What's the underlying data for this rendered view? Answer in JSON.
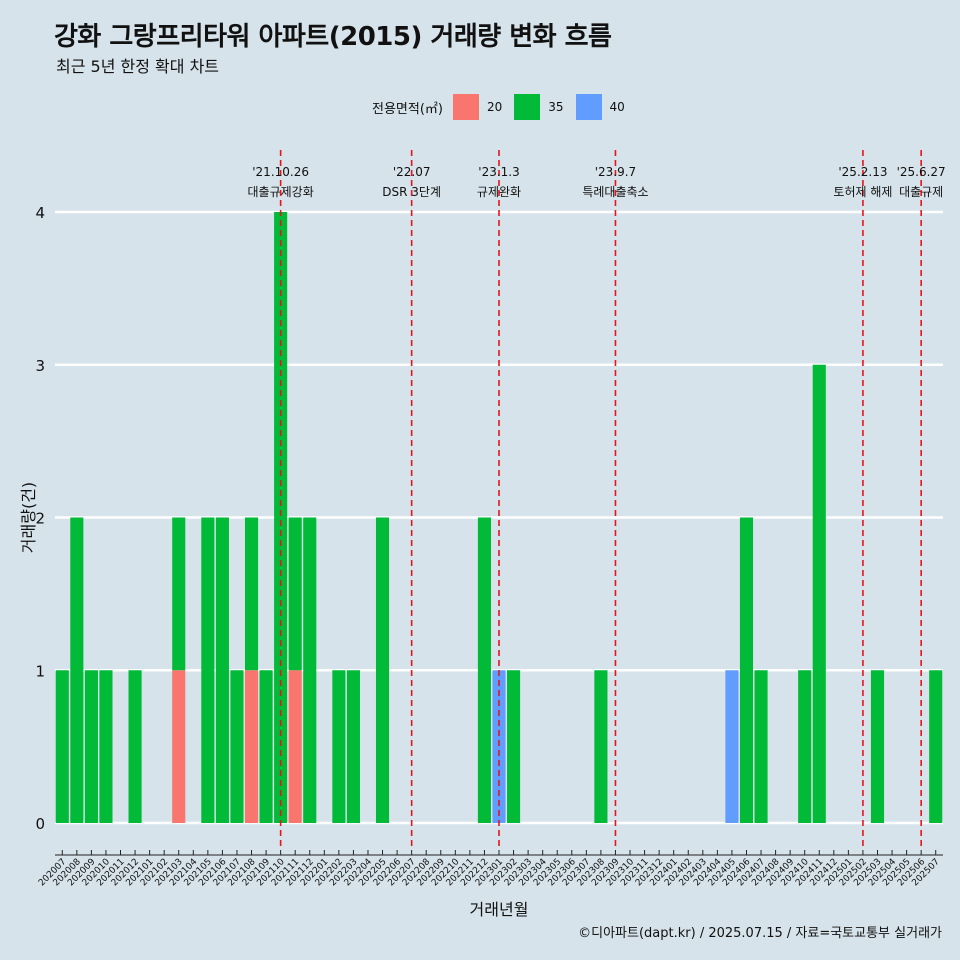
{
  "title": "강화 그랑프리타워 아파트(2015) 거래량 변화 흐름",
  "subtitle": "최근 5년 한정 확대 차트",
  "caption": "©디아파트(dapt.kr) / 2025.07.15 / 자료=국토교통부 실거래가",
  "legend": {
    "title": "전용면적(㎡)",
    "items": [
      {
        "label": "20",
        "color": "#f8766d"
      },
      {
        "label": "35",
        "color": "#00ba38"
      },
      {
        "label": "40",
        "color": "#619cff"
      }
    ]
  },
  "chart_data": {
    "type": "bar",
    "stacked": true,
    "xlabel": "거래년월",
    "ylabel": "거래량(건)",
    "ylim": [
      0,
      4
    ],
    "yticks": [
      0,
      1,
      2,
      3,
      4
    ],
    "categories": [
      "202007",
      "202008",
      "202009",
      "202010",
      "202011",
      "202012",
      "202101",
      "202102",
      "202103",
      "202104",
      "202105",
      "202106",
      "202107",
      "202108",
      "202109",
      "202110",
      "202111",
      "202112",
      "202201",
      "202202",
      "202203",
      "202204",
      "202205",
      "202206",
      "202207",
      "202208",
      "202209",
      "202210",
      "202211",
      "202212",
      "202301",
      "202302",
      "202303",
      "202304",
      "202305",
      "202306",
      "202307",
      "202308",
      "202309",
      "202310",
      "202311",
      "202312",
      "202401",
      "202402",
      "202403",
      "202404",
      "202405",
      "202406",
      "202407",
      "202408",
      "202409",
      "202410",
      "202411",
      "202412",
      "202501",
      "202502",
      "202503",
      "202504",
      "202505",
      "202506",
      "202507"
    ],
    "series": [
      {
        "name": "20",
        "color": "#f8766d",
        "values": [
          0,
          0,
          0,
          0,
          0,
          0,
          0,
          0,
          1,
          0,
          0,
          0,
          0,
          1,
          0,
          0,
          1,
          0,
          0,
          0,
          0,
          0,
          0,
          0,
          0,
          0,
          0,
          0,
          0,
          0,
          0,
          0,
          0,
          0,
          0,
          0,
          0,
          0,
          0,
          0,
          0,
          0,
          0,
          0,
          0,
          0,
          0,
          0,
          0,
          0,
          0,
          0,
          0,
          0,
          0,
          0,
          0,
          0,
          0,
          0,
          0
        ]
      },
      {
        "name": "35",
        "color": "#00ba38",
        "values": [
          1,
          2,
          1,
          1,
          0,
          1,
          0,
          0,
          1,
          0,
          2,
          2,
          1,
          1,
          1,
          4,
          1,
          2,
          0,
          1,
          1,
          0,
          2,
          0,
          0,
          0,
          0,
          0,
          0,
          2,
          0,
          1,
          0,
          0,
          0,
          0,
          0,
          1,
          0,
          0,
          0,
          0,
          0,
          0,
          0,
          0,
          0,
          2,
          1,
          0,
          0,
          1,
          3,
          0,
          0,
          0,
          1,
          0,
          0,
          0,
          1
        ]
      },
      {
        "name": "40",
        "color": "#619cff",
        "values": [
          0,
          0,
          0,
          0,
          0,
          0,
          0,
          0,
          0,
          0,
          0,
          0,
          0,
          0,
          0,
          0,
          0,
          0,
          0,
          0,
          0,
          0,
          0,
          0,
          0,
          0,
          0,
          0,
          0,
          0,
          1,
          0,
          0,
          0,
          0,
          0,
          0,
          0,
          0,
          0,
          0,
          0,
          0,
          0,
          0,
          0,
          1,
          0,
          0,
          0,
          0,
          0,
          0,
          0,
          0,
          0,
          0,
          0,
          0,
          0,
          0
        ]
      }
    ],
    "events": [
      {
        "month": "202110",
        "date": "'21.10.26",
        "label": "대출규제강화"
      },
      {
        "month": "202207",
        "date": "'22.07",
        "label": "DSR 3단계"
      },
      {
        "month": "202301",
        "date": "'23.1.3",
        "label": "규제완화"
      },
      {
        "month": "202309",
        "date": "'23.9.7",
        "label": "특례대출축소"
      },
      {
        "month": "202502",
        "date": "'25.2.13",
        "label": "토허제 해제"
      },
      {
        "month": "202506",
        "date": "'25.6.27",
        "label": "대출규제"
      }
    ]
  }
}
